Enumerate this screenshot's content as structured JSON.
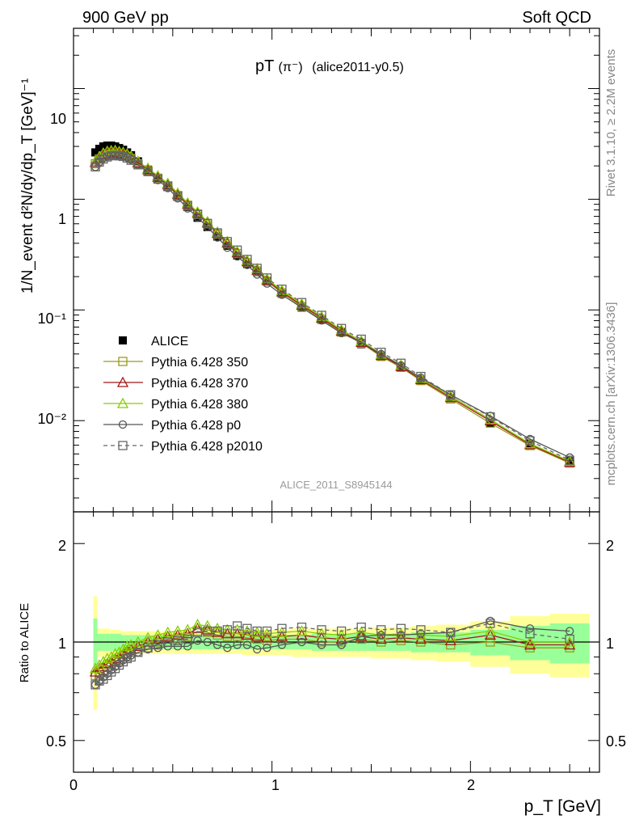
{
  "header": {
    "left": "900 GeV pp",
    "right": "Soft QCD"
  },
  "side": {
    "rivet": "Rivet 3.1.10, ≥ 2.2M events",
    "mcplots": "mcplots.cern.ch [arXiv:1306.3436]"
  },
  "plot_title": {
    "main": "pT",
    "paren": "(π⁻)",
    "tag": "(alice2011-y0.5)"
  },
  "watermark": "ALICE_2011_S8945144",
  "axes": {
    "ylabel_top": "1/N_event d²N/dy/dp_T [GeV]⁻¹",
    "ylabel_bottom": "Ratio to ALICE",
    "xlabel": "p_T [GeV]",
    "top_yticks": [
      "10⁻²",
      "10⁻¹",
      "1",
      "10"
    ],
    "bottom_yticks": [
      "0.5",
      "1",
      "2"
    ],
    "xticks": [
      "0",
      "1",
      "2"
    ]
  },
  "chart_data": [
    {
      "type": "line",
      "yscale": "log",
      "xlim": [
        0,
        2.65
      ],
      "ylim": [
        0.0015,
        35
      ],
      "x": [
        0.11,
        0.13,
        0.15,
        0.17,
        0.19,
        0.21,
        0.23,
        0.25,
        0.27,
        0.29,
        0.325,
        0.375,
        0.425,
        0.475,
        0.525,
        0.575,
        0.625,
        0.675,
        0.725,
        0.775,
        0.825,
        0.875,
        0.925,
        0.975,
        1.05,
        1.15,
        1.25,
        1.35,
        1.45,
        1.55,
        1.65,
        1.75,
        1.9,
        2.1,
        2.3,
        2.5
      ],
      "series": [
        {
          "name": "ALICE",
          "color": "#000000",
          "style": "data",
          "values": [
            2.65,
            2.85,
            3.0,
            3.05,
            3.05,
            3.0,
            2.9,
            2.8,
            2.65,
            2.5,
            2.2,
            1.85,
            1.55,
            1.3,
            1.05,
            0.85,
            0.68,
            0.56,
            0.46,
            0.38,
            0.31,
            0.26,
            0.22,
            0.18,
            0.14,
            0.105,
            0.082,
            0.063,
            0.049,
            0.038,
            0.03,
            0.023,
            0.016,
            0.0095,
            0.0062,
            0.0043
          ]
        },
        {
          "name": "Pythia 6.428 350",
          "color": "#9a9a22",
          "style": "square",
          "ratio": [
            0.79,
            0.81,
            0.82,
            0.84,
            0.85,
            0.87,
            0.88,
            0.9,
            0.92,
            0.93,
            0.95,
            0.98,
            1.0,
            1.02,
            1.03,
            1.04,
            1.08,
            1.07,
            1.05,
            1.04,
            1.04,
            1.03,
            1.02,
            1.01,
            1.02,
            1.02,
            1.0,
            1.0,
            1.02,
            1.0,
            1.01,
            1.0,
            0.98,
            1.0,
            0.96,
            0.96
          ]
        },
        {
          "name": "Pythia 6.428 370",
          "color": "#a01818",
          "style": "triangle",
          "ratio": [
            0.81,
            0.83,
            0.84,
            0.86,
            0.87,
            0.89,
            0.9,
            0.92,
            0.94,
            0.95,
            0.97,
            1.0,
            1.02,
            1.04,
            1.05,
            1.06,
            1.1,
            1.09,
            1.07,
            1.06,
            1.06,
            1.05,
            1.04,
            1.03,
            1.04,
            1.05,
            1.03,
            1.02,
            1.04,
            1.02,
            1.03,
            1.02,
            1.01,
            1.05,
            0.98,
            0.98
          ]
        },
        {
          "name": "Pythia 6.428 380",
          "color": "#88cc00",
          "style": "triangle",
          "ratio": [
            0.83,
            0.85,
            0.87,
            0.89,
            0.9,
            0.92,
            0.93,
            0.95,
            0.97,
            0.98,
            1.0,
            1.03,
            1.05,
            1.07,
            1.08,
            1.09,
            1.13,
            1.12,
            1.1,
            1.09,
            1.09,
            1.08,
            1.07,
            1.06,
            1.07,
            1.08,
            1.06,
            1.05,
            1.07,
            1.05,
            1.06,
            1.05,
            1.04,
            1.08,
            1.0,
            1.0
          ]
        },
        {
          "name": "Pythia 6.428 p0",
          "color": "#555555",
          "style": "circle",
          "ratio": [
            0.74,
            0.76,
            0.78,
            0.8,
            0.82,
            0.84,
            0.86,
            0.88,
            0.9,
            0.91,
            0.93,
            0.95,
            0.96,
            0.97,
            0.97,
            0.97,
            1.01,
            1.0,
            0.98,
            0.96,
            0.98,
            0.98,
            0.95,
            0.96,
            0.98,
            1.0,
            0.98,
            0.98,
            1.04,
            1.05,
            1.05,
            1.06,
            1.07,
            1.16,
            1.1,
            1.08
          ]
        },
        {
          "name": "Pythia 6.428 p2010",
          "color": "#666666",
          "style": "dashed-square",
          "ratio": [
            0.74,
            0.76,
            0.77,
            0.79,
            0.81,
            0.83,
            0.85,
            0.87,
            0.89,
            0.9,
            0.93,
            0.96,
            0.98,
            1.0,
            1.01,
            1.02,
            1.07,
            1.08,
            1.08,
            1.09,
            1.12,
            1.1,
            1.08,
            1.08,
            1.1,
            1.11,
            1.09,
            1.08,
            1.11,
            1.09,
            1.1,
            1.09,
            1.07,
            1.14,
            1.06,
            1.02
          ]
        }
      ]
    },
    {
      "type": "line",
      "yscale": "log",
      "xlim": [
        0,
        2.65
      ],
      "ylim": [
        0.4,
        2.5
      ],
      "reference": 1,
      "band_green": [
        0.18,
        0.06,
        0.06,
        0.06,
        0.06,
        0.06,
        0.06,
        0.05,
        0.05,
        0.05,
        0.05,
        0.05,
        0.05,
        0.05,
        0.05,
        0.05,
        0.05,
        0.05,
        0.05,
        0.05,
        0.05,
        0.05,
        0.05,
        0.05,
        0.05,
        0.05,
        0.06,
        0.06,
        0.06,
        0.06,
        0.06,
        0.07,
        0.07,
        0.09,
        0.12,
        0.14
      ],
      "band_yellow": [
        0.38,
        0.1,
        0.1,
        0.1,
        0.09,
        0.09,
        0.09,
        0.08,
        0.08,
        0.08,
        0.08,
        0.08,
        0.08,
        0.08,
        0.08,
        0.08,
        0.08,
        0.08,
        0.08,
        0.08,
        0.08,
        0.09,
        0.09,
        0.09,
        0.09,
        0.1,
        0.1,
        0.1,
        0.1,
        0.11,
        0.11,
        0.12,
        0.13,
        0.16,
        0.2,
        0.22
      ]
    }
  ]
}
